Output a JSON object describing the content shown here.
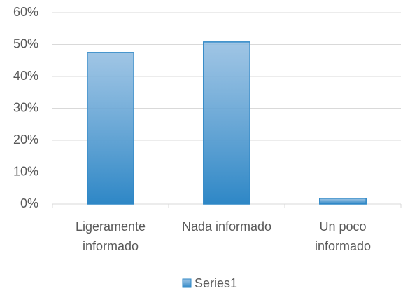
{
  "chart_data": {
    "type": "bar",
    "categories": [
      "Ligeramente informado",
      "Nada informado",
      "Un poco informado"
    ],
    "series": [
      {
        "name": "Series1",
        "color": "#8fbbe0",
        "edgecolor": "#2e87c6",
        "values": [
          47.5,
          50.8,
          1.8
        ]
      }
    ],
    "ylim": [
      0,
      60
    ],
    "yticks": [
      {
        "value": 0,
        "label": "0%"
      },
      {
        "value": 10,
        "label": "10%"
      },
      {
        "value": 20,
        "label": "20%"
      },
      {
        "value": 30,
        "label": "30%"
      },
      {
        "value": 40,
        "label": "40%"
      },
      {
        "value": 50,
        "label": "50%"
      },
      {
        "value": 60,
        "label": "60%"
      }
    ],
    "grid": true,
    "legend": "bottom"
  }
}
